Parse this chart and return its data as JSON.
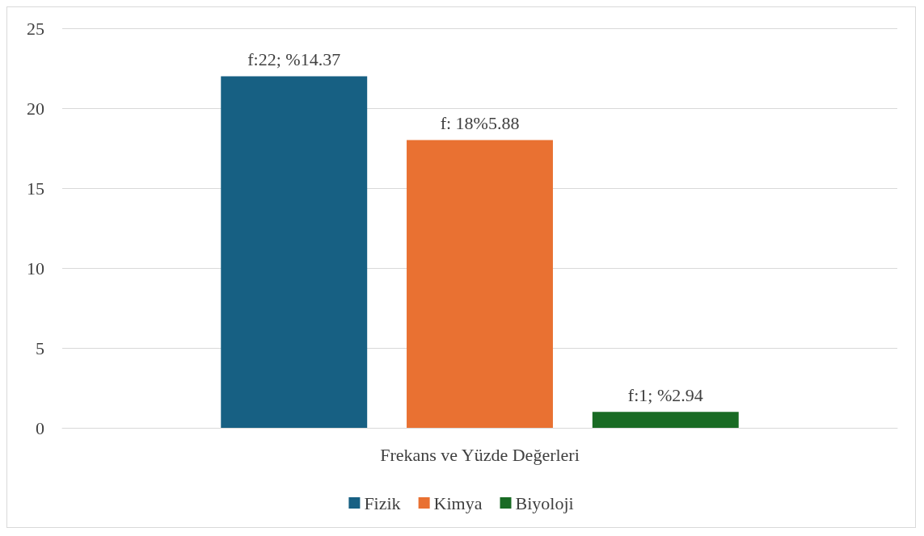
{
  "chart_data": {
    "type": "bar",
    "categories": [
      "Frekans ve Yüzde Değerleri"
    ],
    "series": [
      {
        "name": "Fizik",
        "color": "#176083",
        "values": [
          22
        ],
        "value_labels": [
          "f:22; %14.37"
        ]
      },
      {
        "name": "Kimya",
        "color": "#e97132",
        "values": [
          18
        ],
        "value_labels": [
          "f: 18%5.88"
        ]
      },
      {
        "name": "Biyoloji",
        "color": "#196b24",
        "values": [
          1
        ],
        "value_labels": [
          "f:1; %2.94"
        ]
      }
    ],
    "ylim": [
      0,
      25
    ],
    "yticks": [
      0,
      5,
      10,
      15,
      20,
      25
    ],
    "grid": "y",
    "legend": "bottom"
  }
}
